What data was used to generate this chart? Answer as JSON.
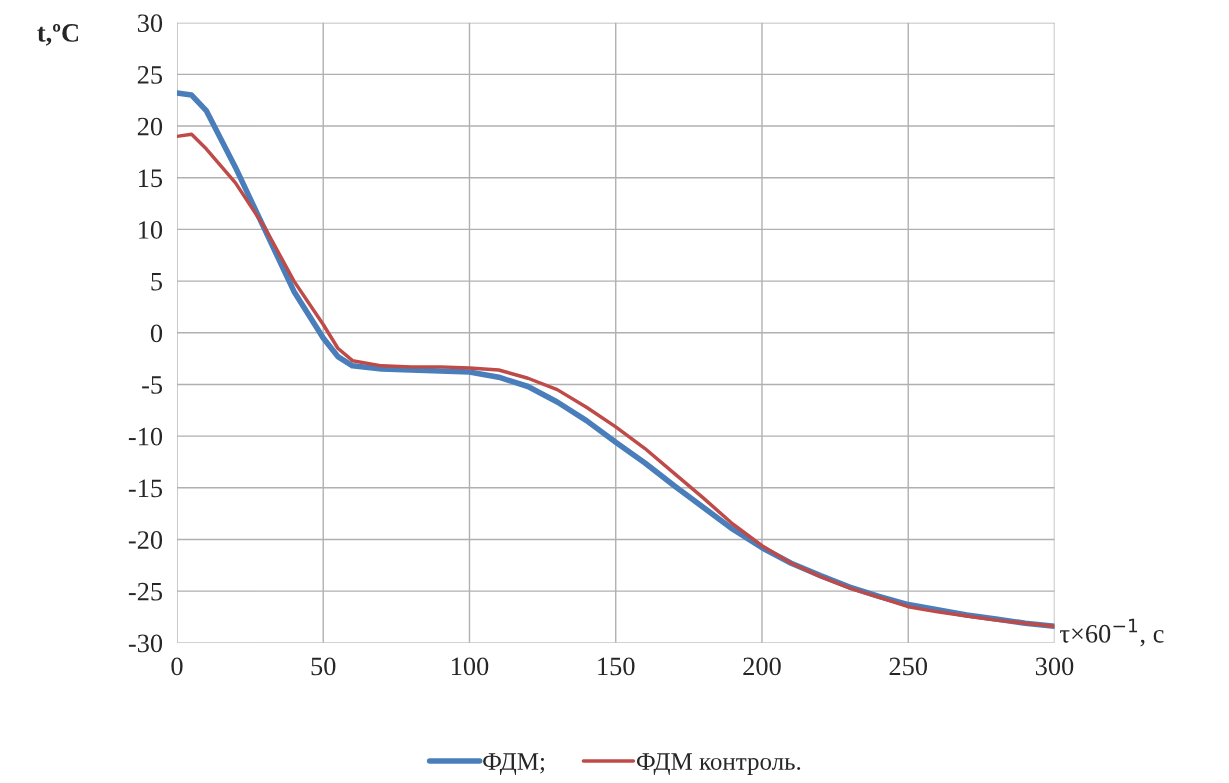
{
  "chart_data": {
    "type": "line",
    "xlabel": "τ×60$^{−1}$, с",
    "ylabel": "t,ºC",
    "xlim": [
      0,
      300
    ],
    "xticks": [
      0,
      50,
      100,
      150,
      200,
      250,
      300
    ],
    "ylim": [
      -30,
      30
    ],
    "yticks": [
      -30,
      -25,
      -20,
      -15,
      -10,
      -5,
      0,
      5,
      10,
      15,
      20,
      25,
      30
    ],
    "grid": true,
    "legend": "bottom",
    "marker": "none",
    "line_style": "solid",
    "x": [
      0,
      5,
      10,
      20,
      30,
      40,
      50,
      55,
      60,
      70,
      80,
      90,
      100,
      110,
      120,
      130,
      140,
      150,
      160,
      170,
      180,
      190,
      200,
      210,
      220,
      230,
      240,
      250,
      260,
      270,
      280,
      290,
      300
    ],
    "series": [
      {
        "name": "ФДМ;",
        "color": "#4a7ebb",
        "values": [
          23.2,
          23,
          21.5,
          16,
          10,
          4,
          -0.5,
          -2.3,
          -3.2,
          -3.5,
          -3.6,
          -3.7,
          -3.8,
          -4.3,
          -5.2,
          -6.7,
          -8.5,
          -10.6,
          -12.6,
          -14.8,
          -16.9,
          -19,
          -20.8,
          -22.3,
          -23.5,
          -24.6,
          -25.5,
          -26.3,
          -26.8,
          -27.3,
          -27.7,
          -28.1,
          -28.4
        ]
      },
      {
        "name": "ФДМ контроль.",
        "color": "#be4b48",
        "values": [
          19,
          19.2,
          17.8,
          14.5,
          10.2,
          5,
          0.8,
          -1.5,
          -2.7,
          -3.2,
          -3.3,
          -3.3,
          -3.4,
          -3.6,
          -4.4,
          -5.5,
          -7.2,
          -9.1,
          -11.2,
          -13.6,
          -16,
          -18.5,
          -20.6,
          -22.3,
          -23.6,
          -24.7,
          -25.6,
          -26.5,
          -27,
          -27.4,
          -27.8,
          -28.1,
          -28.4
        ]
      }
    ]
  }
}
